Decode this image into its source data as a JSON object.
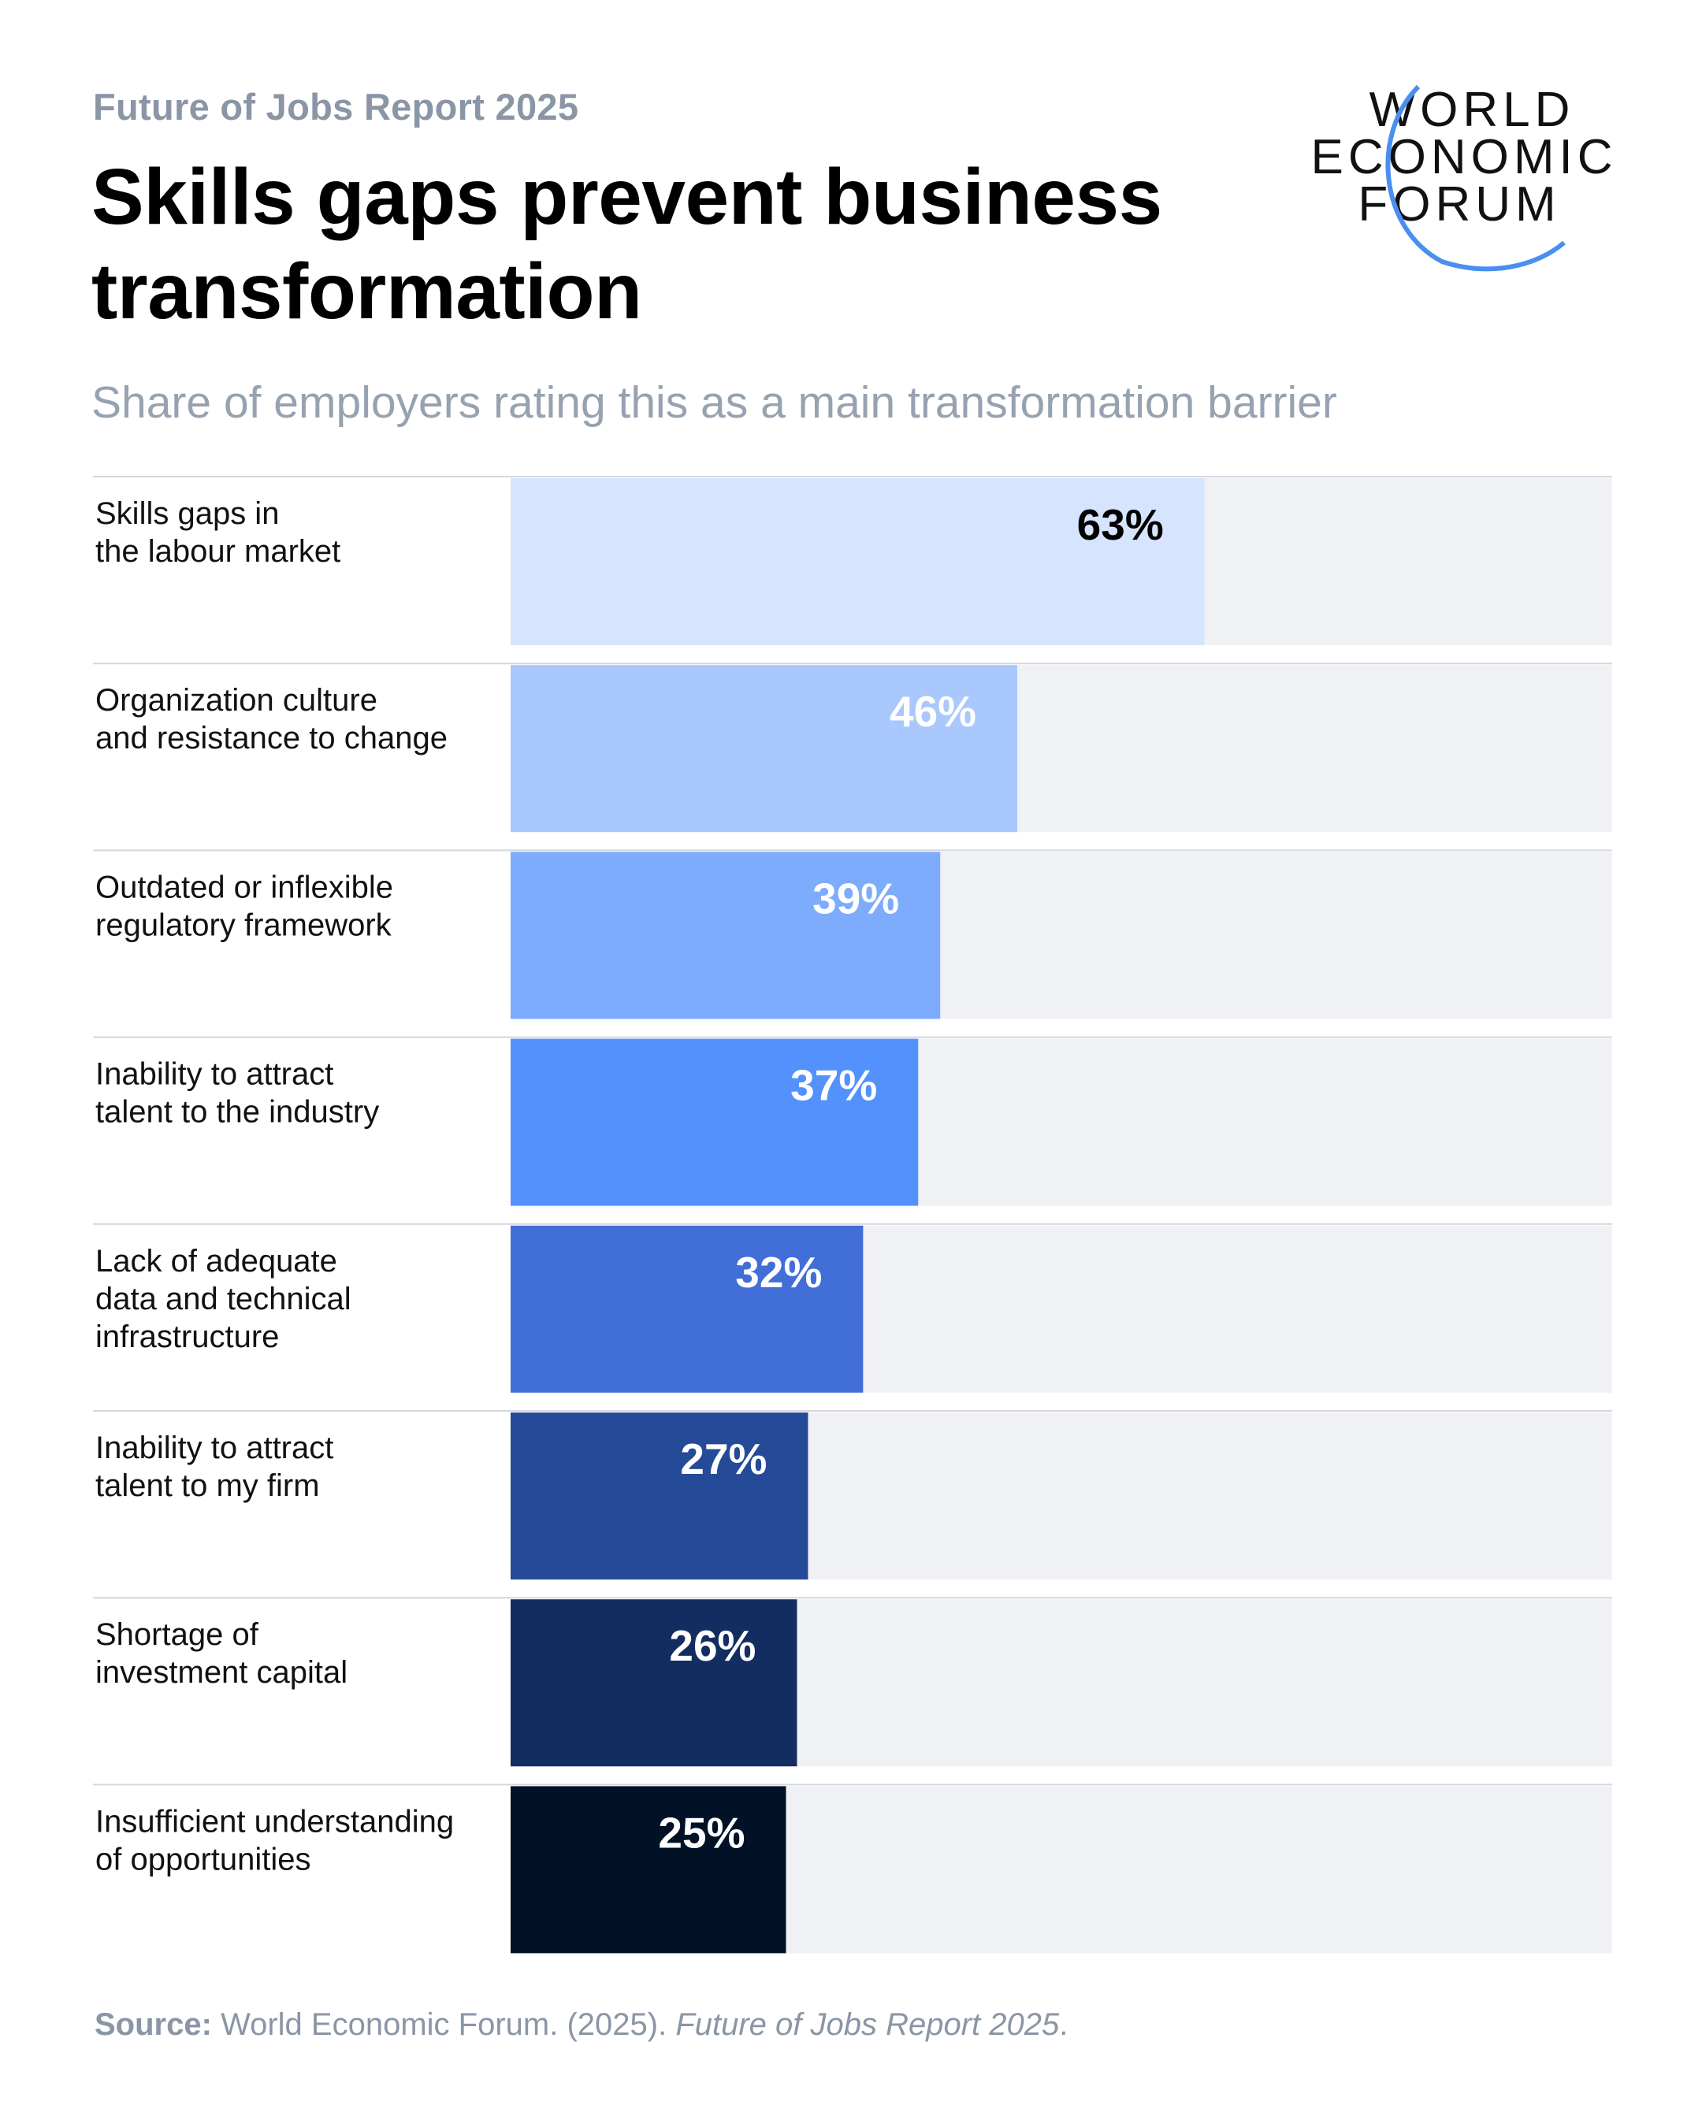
{
  "header": {
    "kicker": "Future of Jobs Report 2025",
    "title": "Skills gaps prevent business transformation",
    "subtitle": "Share of employers rating this as a main transformation barrier"
  },
  "logo": {
    "lines": [
      "WORLD",
      "ECONOMIC",
      "FORUM"
    ],
    "accent_color": "#4a8ff0"
  },
  "chart_data": {
    "type": "bar",
    "orientation": "horizontal",
    "unit": "%",
    "xlim": [
      0,
      100
    ],
    "categories": [
      [
        "Skills gaps in",
        "the labour market"
      ],
      [
        "Organization culture",
        "and resistance to change"
      ],
      [
        "Outdated or inflexible",
        "regulatory framework"
      ],
      [
        "Inability to attract",
        "talent to the industry"
      ],
      [
        "Lack of adequate",
        "data and technical",
        "infrastructure"
      ],
      [
        "Inability to attract",
        "talent to my firm"
      ],
      [
        "Shortage of",
        "investment capital"
      ],
      [
        "Insufficient understanding",
        "of opportunities"
      ]
    ],
    "values": [
      63,
      46,
      39,
      37,
      32,
      27,
      26,
      25
    ],
    "value_labels": [
      "63%",
      "46%",
      "39%",
      "37%",
      "32%",
      "27%",
      "26%",
      "25%"
    ],
    "colors": [
      "#d6e4fd",
      "#a9c8fd",
      "#7eacfc",
      "#5391fd",
      "#416ed7",
      "#254a97",
      "#142d61",
      "#011226"
    ],
    "label_colors": [
      "#000000",
      "#ffffff",
      "#ffffff",
      "#ffffff",
      "#ffffff",
      "#ffffff",
      "#ffffff",
      "#ffffff"
    ],
    "track_color": "#f0f1f5",
    "grid": false
  },
  "source": {
    "label": "Source:",
    "text": "World Economic Forum. (2025).",
    "title": "Future of Jobs Report 2025",
    "end": "."
  }
}
